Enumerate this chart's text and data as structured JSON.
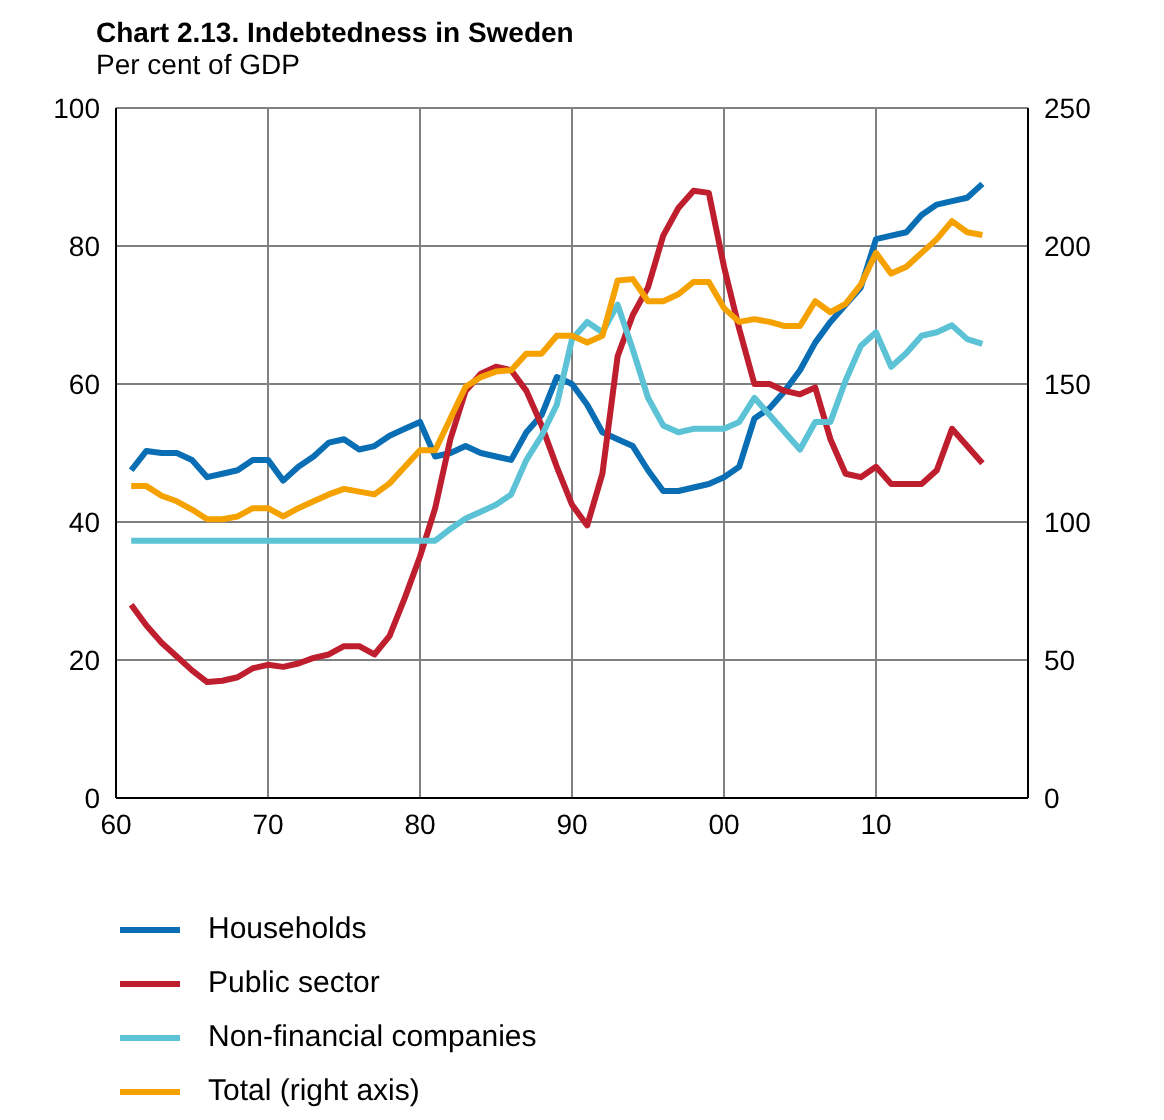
{
  "chart_data": {
    "type": "line",
    "title": "Chart 2.13. Indebtedness in Sweden",
    "subtitle": "Per cent of GDP",
    "x": [
      1961,
      1962,
      1963,
      1964,
      1965,
      1966,
      1967,
      1968,
      1969,
      1970,
      1971,
      1972,
      1973,
      1974,
      1975,
      1976,
      1977,
      1978,
      1979,
      1980,
      1981,
      1982,
      1983,
      1984,
      1985,
      1986,
      1987,
      1988,
      1989,
      1990,
      1991,
      1992,
      1993,
      1994,
      1995,
      1996,
      1997,
      1998,
      1999,
      2000,
      2001,
      2002,
      2003,
      2004,
      2005,
      2006,
      2007,
      2008,
      2009,
      2010,
      2011,
      2012,
      2013,
      2014,
      2015,
      2016,
      2017
    ],
    "series": [
      {
        "name": "Households",
        "color": "#0a6eb4",
        "values": [
          47.5,
          50.3,
          50,
          50,
          49,
          46.5,
          47,
          47.5,
          49,
          49,
          46,
          48,
          49.5,
          51.5,
          52,
          50.5,
          51,
          52.5,
          53.5,
          54.5,
          49.5,
          50,
          51,
          50,
          49.5,
          49,
          53,
          55.5,
          61,
          60,
          57,
          53,
          52,
          51,
          47.5,
          44.5,
          44.5,
          45,
          45.5,
          46.5,
          48,
          55,
          56.5,
          59,
          62,
          66,
          69,
          71.5,
          74,
          81,
          81.5,
          82,
          84.5,
          86,
          86.5,
          87,
          89
        ]
      },
      {
        "name": "Public sector",
        "color": "#be1e2d",
        "values": [
          28,
          25,
          22.5,
          20.5,
          18.5,
          16.8,
          17,
          17.5,
          18.8,
          19.3,
          19,
          19.5,
          20.3,
          20.8,
          22,
          22,
          20.8,
          23.5,
          29,
          35,
          42,
          52,
          59,
          61.5,
          62.5,
          62,
          59,
          54,
          48,
          42.5,
          39.5,
          47,
          64,
          70,
          74,
          81.5,
          85.5,
          88,
          87.7,
          77,
          68,
          60,
          60,
          59,
          58.5,
          59.5,
          52,
          47,
          46.5,
          48,
          45.5,
          45.5,
          45.5,
          47.5,
          53.5,
          51,
          48.5
        ]
      },
      {
        "name": "Non-financial companies",
        "color": "#5bc3d5",
        "values": [
          37.3,
          37.3,
          37.3,
          37.3,
          37.3,
          37.3,
          37.3,
          37.3,
          37.3,
          37.3,
          37.3,
          37.3,
          37.3,
          37.3,
          37.3,
          37.3,
          37.3,
          37.3,
          37.3,
          37.3,
          37.3,
          39,
          40.5,
          41.5,
          42.5,
          44,
          49,
          52.5,
          57,
          66.5,
          69,
          67.5,
          71.5,
          65,
          58,
          54,
          53,
          53.5,
          53.5,
          53.5,
          54.5,
          58,
          55.5,
          53,
          50.5,
          54.5,
          54.5,
          60.5,
          65.5,
          67.5,
          62.5,
          64.5,
          67,
          67.5,
          68.5,
          66.5,
          65.8
        ]
      },
      {
        "name": "Total (right axis)",
        "color": "#f5a100",
        "axis": "y2",
        "values": [
          113,
          113,
          109.5,
          107.5,
          104.5,
          101,
          101,
          102,
          105,
          105,
          102,
          105,
          107.5,
          110,
          112,
          111,
          110,
          114,
          120,
          126,
          126,
          137.5,
          149,
          152.5,
          154.5,
          155,
          161,
          161,
          167.5,
          167.5,
          165,
          167.5,
          187.5,
          188,
          180,
          180,
          182.5,
          187,
          187,
          177.5,
          172.5,
          173.5,
          172.5,
          171,
          171,
          180,
          176,
          179,
          186,
          197.5,
          190,
          192.5,
          197.5,
          202.5,
          209,
          205,
          204
        ]
      }
    ],
    "xlim": [
      1960,
      2020
    ],
    "xticks": [
      {
        "value": 1960,
        "label": "60"
      },
      {
        "value": 1970,
        "label": "70"
      },
      {
        "value": 1980,
        "label": "80"
      },
      {
        "value": 1990,
        "label": "90"
      },
      {
        "value": 2000,
        "label": "00"
      },
      {
        "value": 2010,
        "label": "10"
      }
    ],
    "ylim": [
      0,
      100
    ],
    "yticks": [
      0,
      20,
      40,
      60,
      80,
      100
    ],
    "y2lim": [
      0,
      250
    ],
    "y2ticks": [
      0,
      50,
      100,
      150,
      200,
      250
    ],
    "grid": true,
    "legend": "bottom",
    "marker": "none",
    "line_style": "solid"
  }
}
